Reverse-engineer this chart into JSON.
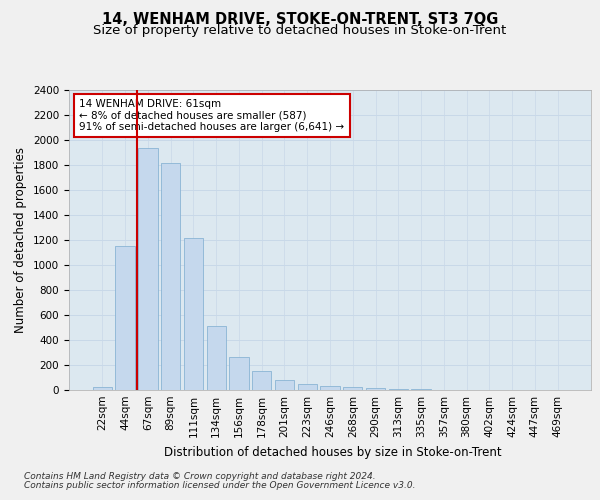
{
  "title": "14, WENHAM DRIVE, STOKE-ON-TRENT, ST3 7QG",
  "subtitle": "Size of property relative to detached houses in Stoke-on-Trent",
  "xlabel": "Distribution of detached houses by size in Stoke-on-Trent",
  "ylabel": "Number of detached properties",
  "footer1": "Contains HM Land Registry data © Crown copyright and database right 2024.",
  "footer2": "Contains public sector information licensed under the Open Government Licence v3.0.",
  "bar_labels": [
    "22sqm",
    "44sqm",
    "67sqm",
    "89sqm",
    "111sqm",
    "134sqm",
    "156sqm",
    "178sqm",
    "201sqm",
    "223sqm",
    "246sqm",
    "268sqm",
    "290sqm",
    "313sqm",
    "335sqm",
    "357sqm",
    "380sqm",
    "402sqm",
    "424sqm",
    "447sqm",
    "469sqm"
  ],
  "bar_values": [
    22,
    1150,
    1940,
    1820,
    1220,
    510,
    265,
    155,
    80,
    45,
    32,
    28,
    15,
    8,
    5,
    4,
    3,
    2,
    1,
    1,
    1
  ],
  "bar_color": "#c5d8ed",
  "bar_edge_color": "#8ab4d4",
  "annotation_text": "14 WENHAM DRIVE: 61sqm\n← 8% of detached houses are smaller (587)\n91% of semi-detached houses are larger (6,641) →",
  "annotation_box_color": "#ffffff",
  "annotation_box_edge_color": "#cc0000",
  "vline_color": "#cc0000",
  "ylim": [
    0,
    2400
  ],
  "yticks": [
    0,
    200,
    400,
    600,
    800,
    1000,
    1200,
    1400,
    1600,
    1800,
    2000,
    2200,
    2400
  ],
  "grid_color": "#c8d8e8",
  "bg_color": "#dce8f0",
  "fig_bg_color": "#f0f0f0",
  "title_fontsize": 10.5,
  "subtitle_fontsize": 9.5,
  "axis_label_fontsize": 8.5,
  "tick_fontsize": 7.5,
  "footer_fontsize": 6.5,
  "annot_fontsize": 7.5
}
